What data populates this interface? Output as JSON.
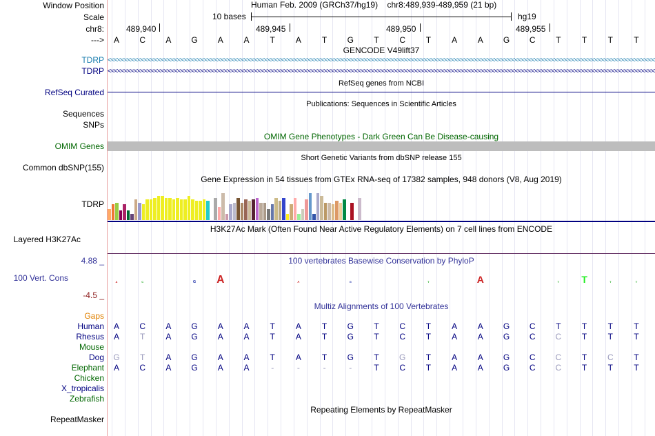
{
  "colors": {
    "navy": "#000080",
    "teal": "#1a7dae",
    "green": "#006600",
    "orange": "#e08000",
    "darkred": "#8b1a1a",
    "phylo": "#333399",
    "grey": "#bdbdbd"
  },
  "labels": {
    "window_position": "Window Position",
    "scale": "Scale",
    "chr": "chr8:",
    "strand_arrow": "--->",
    "tdrp1": "TDRP",
    "tdrp2": "TDRP",
    "refseq": "RefSeq Curated",
    "sequences": "Sequences",
    "snps": "SNPs",
    "omim": "OMIM Genes",
    "common_dbsnp": "Common dbSNP(155)",
    "tdrp_gtex": "TDRP",
    "layered": "Layered H3K27Ac",
    "phylo_max": "4.88 _",
    "vert_cons": "100 Vert. Cons",
    "phylo_min": "-4.5 _",
    "gaps": "Gaps",
    "species": [
      "Human",
      "Rhesus",
      "Mouse",
      "Dog",
      "Elephant",
      "Chicken",
      "X_tropicalis",
      "Zebrafish"
    ],
    "repeatmasker": "RepeatMasker"
  },
  "header": {
    "assembly": "Human Feb. 2009 (GRCh37/hg19)",
    "position": "chr8:489,939-489,959 (21 bp)",
    "scale_text": "10 bases",
    "scale_db": "hg19",
    "coords": [
      "489,940",
      "489,945",
      "489,950",
      "489,955"
    ]
  },
  "sequence": [
    "A",
    "C",
    "A",
    "G",
    "A",
    "A",
    "T",
    "A",
    "T",
    "G",
    "T",
    "C",
    "T",
    "A",
    "A",
    "G",
    "C",
    "T",
    "T",
    "T",
    "T"
  ],
  "tracks": {
    "gencode": "GENCODE V49lift37",
    "refseq_title": "RefSeq genes from NCBI",
    "pubs_title": "Publications: Sequences in Scientific Articles",
    "omim_title": "OMIM Gene Phenotypes - Dark Green Can Be Disease-causing",
    "dbsnp_title": "Short Genetic Variants from dbSNP release 155",
    "gtex_title": "Gene Expression in 54 tissues from GTEx RNA-seq of 17382 samples, 948 donors (V8, Aug 2019)",
    "h3k27_title": "H3K27Ac Mark (Often Found Near Active Regulatory Elements) on 7 cell lines from ENCODE",
    "phylop_title": "100 vertebrates Basewise Conservation by PhyloP",
    "multiz_title": "Multiz Alignments of 100 Vertebrates",
    "rmsk_title": "Repeating Elements by RepeatMasker"
  },
  "alignment": {
    "Human": [
      "A",
      "C",
      "A",
      "G",
      "A",
      "A",
      "T",
      "A",
      "T",
      "G",
      "T",
      "C",
      "T",
      "A",
      "A",
      "G",
      "C",
      "T",
      "T",
      "T",
      "T"
    ],
    "Rhesus": [
      "A",
      "T",
      "A",
      "G",
      "A",
      "A",
      "T",
      "A",
      "T",
      "G",
      "T",
      "C",
      "T",
      "A",
      "A",
      "G",
      "C",
      "C",
      "T",
      "T",
      "T"
    ],
    "Dog": [
      "G",
      "T",
      "A",
      "G",
      "A",
      "A",
      "T",
      "A",
      "T",
      "G",
      "T",
      "G",
      "T",
      "A",
      "A",
      "G",
      "C",
      "C",
      "T",
      "C",
      "T"
    ],
    "Elephant": [
      "A",
      "C",
      "A",
      "G",
      "A",
      "A",
      "-",
      "-",
      "-",
      "-",
      "T",
      "C",
      "T",
      "A",
      "A",
      "G",
      "C",
      "C",
      "T",
      "T",
      "T"
    ]
  },
  "alignment_faded": {
    "Rhesus": [
      1,
      17
    ],
    "Dog": [
      0,
      1,
      11,
      17,
      19
    ],
    "Elephant": [
      6,
      7,
      8,
      9,
      17
    ]
  },
  "gtex_values": [
    14,
    20,
    22,
    12,
    20,
    12,
    8,
    26,
    22,
    20,
    26,
    26,
    28,
    30,
    30,
    28,
    28,
    26,
    28,
    26,
    26,
    30,
    26,
    24,
    24,
    26,
    24,
    30,
    28,
    16,
    34,
    8,
    20,
    22,
    28,
    22,
    26,
    24,
    26,
    28,
    22,
    22,
    14,
    20,
    28,
    24,
    28,
    8,
    20,
    28,
    8,
    14,
    26,
    34,
    8,
    34,
    30,
    22,
    22,
    20,
    24,
    22,
    26,
    44,
    22,
    28,
    28,
    28,
    18
  ],
  "gtex_colors": [
    "#ffaa66",
    "#ee7733",
    "#99cc44",
    "#880055",
    "#aa2266",
    "#006633",
    "#664477",
    "#ccaa88",
    "#9999cc",
    "#eeee22",
    "#eeee22",
    "#eeee22",
    "#eeee22",
    "#eeee22",
    "#eeee22",
    "#eeee22",
    "#eeee22",
    "#eeee22",
    "#eeee22",
    "#eeee22",
    "#eeee22",
    "#eeee22",
    "#eeee22",
    "#eeee22",
    "#eeee22",
    "#eeee22",
    "#22cccc",
    "#ffffff",
    "#aaaaaa",
    "#ffaaaa",
    "#ccbbaa",
    "#cc99aa",
    "#aaaacc",
    "#bbbbcc",
    "#775533",
    "#aa8866",
    "#996655",
    "#ccbb99",
    "#552233",
    "#bb66cc",
    "#bbaa99",
    "#aa9988",
    "#777777",
    "#6677aa",
    "#ccbb88",
    "#bbaa88",
    "#3344cc",
    "#ffee22",
    "#ccaa77",
    "#ffaaaa",
    "#99ee99",
    "#ccccbb",
    "#ee9999",
    "#6699cc",
    "#3355aa",
    "#aaaacc",
    "#ccbb99",
    "#bb9966",
    "#ccbbaa",
    "#ddbb88",
    "#dd9966",
    "#eecc99",
    "#008844",
    "#ffffff",
    "#aa1122",
    "#ffffff",
    "#ccbbcc",
    "#ffffff",
    "#ffffff"
  ],
  "phylop_letters": [
    {
      "i": 0,
      "c": "#cc2222",
      "h": 2
    },
    {
      "i": 1,
      "c": "#22aa22",
      "h": 1
    },
    {
      "i": 3,
      "c": "#2233aa",
      "h": 4
    },
    {
      "i": 4,
      "c": "#cc2222",
      "h": 11
    },
    {
      "i": 7,
      "c": "#cc2222",
      "h": 3
    },
    {
      "i": 9,
      "c": "#2233aa",
      "h": 2
    },
    {
      "i": 12,
      "c": "#22aa22",
      "h": 2
    },
    {
      "i": 14,
      "c": "#cc2222",
      "h": 10
    },
    {
      "i": 17,
      "c": "#22aa22",
      "h": 1
    },
    {
      "i": 18,
      "c": "#22ee22",
      "h": 10
    },
    {
      "i": 19,
      "c": "#22aa22",
      "h": 2
    },
    {
      "i": 20,
      "c": "#22aa22",
      "h": 2
    }
  ]
}
